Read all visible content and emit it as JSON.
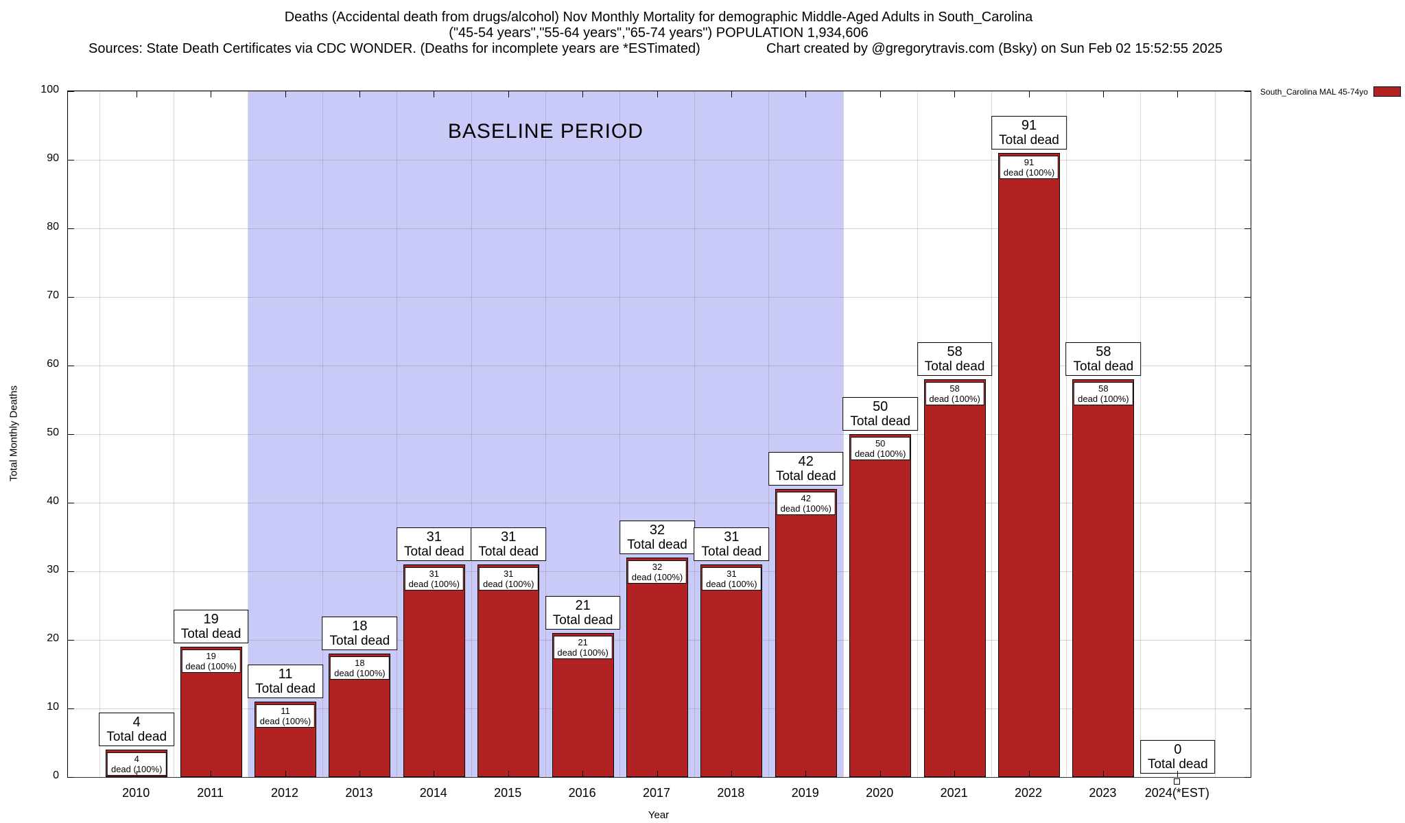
{
  "title": {
    "line1": "Deaths (Accidental death from drugs/alcohol) Nov Monthly Mortality for demographic Middle-Aged Adults in South_Carolina",
    "line2": "(\"45-54 years\",\"55-64 years\",\"65-74 years\") POPULATION 1,934,606",
    "sources": "Sources: State Death Certificates via CDC WONDER. (Deaths for incomplete years are *ESTimated)",
    "credit": "Chart created by @gregorytravis.com (Bsky) on Sun Feb 02 15:52:55 2025"
  },
  "legend": {
    "label": "South_Carolina MAL 45-74yo",
    "color": "#B22222"
  },
  "baseline": {
    "label": "BASELINE PERIOD",
    "start_year": "2012",
    "end_year": "2019",
    "band_color": "#cacaf8"
  },
  "chart_data": {
    "type": "bar",
    "title": "Deaths (Accidental death from drugs/alcohol) Nov Monthly Mortality for demographic Middle-Aged Adults in South_Carolina",
    "xlabel": "Year",
    "ylabel": "Total Monthly Deaths",
    "ylim": [
      0,
      100
    ],
    "yticks": [
      0,
      10,
      20,
      30,
      40,
      50,
      60,
      70,
      80,
      90,
      100
    ],
    "categories": [
      "2010",
      "2011",
      "2012",
      "2013",
      "2014",
      "2015",
      "2016",
      "2017",
      "2018",
      "2019",
      "2020",
      "2021",
      "2022",
      "2023",
      "2024(*EST)"
    ],
    "values": [
      4,
      19,
      11,
      18,
      31,
      31,
      21,
      32,
      31,
      42,
      50,
      58,
      91,
      58,
      0
    ],
    "bar_color": "#B22222",
    "total_suffix": "Total dead",
    "count_suffix": "dead (100%)",
    "grid": true,
    "legend_position": "top-right",
    "baseline_band_years": [
      "2012",
      "2019"
    ]
  }
}
